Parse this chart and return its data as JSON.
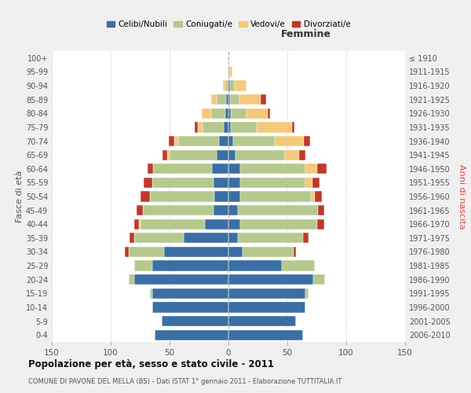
{
  "age_groups": [
    "0-4",
    "5-9",
    "10-14",
    "15-19",
    "20-24",
    "25-29",
    "30-34",
    "35-39",
    "40-44",
    "45-49",
    "50-54",
    "55-59",
    "60-64",
    "65-69",
    "70-74",
    "75-79",
    "80-84",
    "85-89",
    "90-94",
    "95-99",
    "100+"
  ],
  "birth_years": [
    "2006-2010",
    "2001-2005",
    "1996-2000",
    "1991-1995",
    "1986-1990",
    "1981-1985",
    "1976-1980",
    "1971-1975",
    "1966-1970",
    "1961-1965",
    "1956-1960",
    "1951-1955",
    "1946-1950",
    "1941-1945",
    "1936-1940",
    "1931-1935",
    "1926-1930",
    "1921-1925",
    "1916-1920",
    "1911-1915",
    "≤ 1910"
  ],
  "male": {
    "celibi": [
      63,
      57,
      65,
      65,
      80,
      65,
      55,
      38,
      20,
      13,
      12,
      13,
      14,
      10,
      8,
      4,
      3,
      2,
      1,
      0,
      0
    ],
    "coniugati": [
      0,
      0,
      0,
      2,
      5,
      15,
      30,
      42,
      55,
      60,
      55,
      52,
      50,
      40,
      35,
      18,
      12,
      8,
      2,
      0,
      0
    ],
    "vedovi": [
      0,
      0,
      0,
      0,
      0,
      0,
      0,
      0,
      1,
      0,
      0,
      0,
      0,
      2,
      3,
      4,
      8,
      5,
      2,
      0,
      0
    ],
    "divorziati": [
      0,
      0,
      0,
      0,
      0,
      0,
      3,
      4,
      4,
      5,
      8,
      7,
      5,
      4,
      5,
      3,
      0,
      0,
      0,
      0,
      0
    ]
  },
  "female": {
    "nubili": [
      63,
      57,
      65,
      65,
      72,
      45,
      12,
      8,
      10,
      8,
      10,
      10,
      10,
      6,
      4,
      2,
      2,
      1,
      1,
      0,
      0
    ],
    "coniugate": [
      0,
      0,
      0,
      3,
      10,
      28,
      43,
      55,
      65,
      68,
      60,
      55,
      55,
      42,
      35,
      22,
      13,
      8,
      4,
      1,
      0
    ],
    "vedove": [
      0,
      0,
      0,
      0,
      0,
      0,
      0,
      0,
      0,
      0,
      3,
      6,
      10,
      12,
      25,
      30,
      18,
      18,
      10,
      2,
      0
    ],
    "divorziate": [
      0,
      0,
      0,
      0,
      0,
      0,
      2,
      5,
      6,
      5,
      6,
      6,
      8,
      5,
      5,
      2,
      2,
      5,
      0,
      0,
      0
    ]
  },
  "colors": {
    "celibi": "#3a6ea5",
    "coniugati": "#b5c98e",
    "vedovi": "#f5c97a",
    "divorziati": "#c0392b"
  },
  "xlim": 150,
  "title": "Popolazione per età, sesso e stato civile - 2011",
  "subtitle": "COMUNE DI PAVONE DEL MELLA (BS) - Dati ISTAT 1° gennaio 2011 - Elaborazione TUTTITALIA.IT",
  "ylabel_left": "Fasce di età",
  "ylabel_right": "Anni di nascita",
  "xlabel_right": "Femmine",
  "bg_color": "#f0f0f0",
  "plot_bg_color": "#ffffff"
}
